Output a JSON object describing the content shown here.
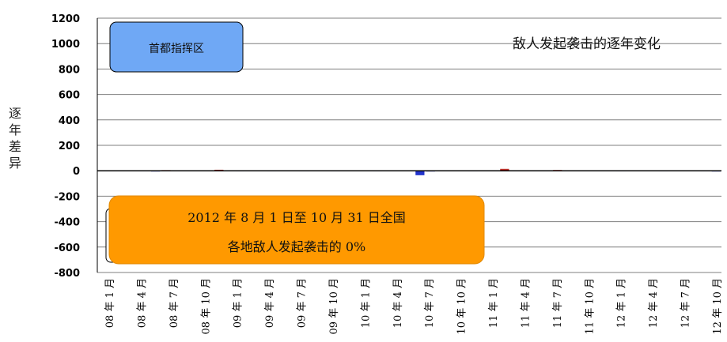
{
  "chart_data": {
    "type": "bar",
    "title": "敌人发起袭击的逐年变化",
    "ylabel": "逐年差异",
    "xlabel": "",
    "ylim": [
      -800,
      1200
    ],
    "yticks": [
      1200,
      1000,
      800,
      600,
      400,
      200,
      0,
      -200,
      -400,
      -600,
      -800
    ],
    "gridlines": true,
    "tick_labels": [
      "08 年 1 月",
      "08 年 4 月",
      "08 年 7 月",
      "08 年 10 月",
      "09 年 1 月",
      "09 年 4 月",
      "09 年 7 月",
      "09 年 10 月",
      "10 年 1 月",
      "10 年 4 月",
      "10 年 7 月",
      "10 年 10 月",
      "11 年 1 月",
      "11 年 4 月",
      "11 年 7 月",
      "11 年 10 月",
      "12 年 1 月",
      "12 年 4 月",
      "12 年 7 月",
      "12 年 10 月"
    ],
    "values": [
      -3,
      2,
      -4,
      1,
      -5,
      -6,
      5,
      2,
      3,
      -4,
      -3,
      8,
      2,
      -5,
      -3,
      4,
      -5,
      1,
      -4,
      -5,
      3,
      -4,
      -5,
      -4,
      2,
      3,
      -5,
      -4,
      2,
      -4,
      -35,
      -6,
      -3,
      -2,
      4,
      -5,
      3,
      4,
      15,
      2,
      -4,
      -3,
      3,
      6,
      2,
      -4,
      -3,
      2,
      -4,
      -5,
      -3,
      3,
      -4,
      -5,
      3,
      2,
      -4,
      -5,
      -6
    ],
    "colors": {
      "positive": "#c0302a",
      "negative": "#2233cc",
      "axis": "#000000",
      "grid": "#7f7f7f"
    },
    "annotations": [
      {
        "text": "首都指挥区",
        "style": "blue-box",
        "color": "#6fa8f5"
      },
      {
        "text_lines": [
          "2012 年 8 月 1 日至 10 月 31 日全国",
          "各地敌人发起袭击的 0%"
        ],
        "style": "orange-box",
        "color": "#ff9900"
      }
    ]
  }
}
